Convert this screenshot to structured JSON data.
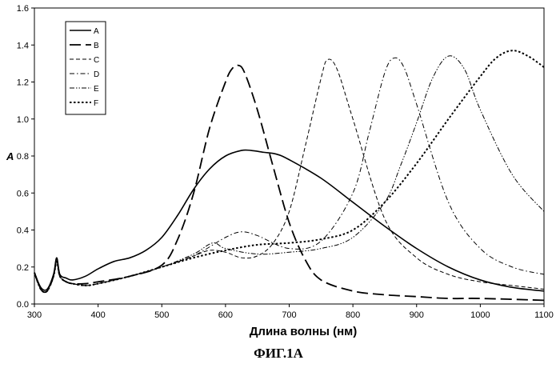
{
  "figure_caption": "ФИГ.1А",
  "chart_data": {
    "type": "line",
    "xlabel": "Длина волны (нм)",
    "ylabel": "A",
    "xlim": [
      300,
      1100
    ],
    "ylim": [
      0,
      1.6
    ],
    "x_ticks": [
      300,
      400,
      500,
      600,
      700,
      800,
      900,
      1000,
      1100
    ],
    "y_ticks": [
      "0.0",
      "0.2",
      "0.4",
      "0.6",
      "0.8",
      "1.0",
      "1.2",
      "1.4",
      "1.6"
    ],
    "legend_position": "top-left",
    "grid": false,
    "series": [
      {
        "name": "A",
        "dash": "solid",
        "x": [
          300,
          310,
          320,
          330,
          335,
          340,
          350,
          360,
          380,
          400,
          425,
          450,
          475,
          500,
          525,
          550,
          575,
          600,
          625,
          640,
          660,
          680,
          700,
          750,
          800,
          850,
          900,
          950,
          1000,
          1050,
          1100
        ],
        "y": [
          0.17,
          0.09,
          0.08,
          0.16,
          0.25,
          0.16,
          0.14,
          0.13,
          0.15,
          0.19,
          0.23,
          0.25,
          0.29,
          0.36,
          0.48,
          0.62,
          0.73,
          0.8,
          0.83,
          0.83,
          0.82,
          0.81,
          0.78,
          0.68,
          0.55,
          0.42,
          0.3,
          0.2,
          0.13,
          0.09,
          0.07
        ]
      },
      {
        "name": "B",
        "dash": "longdash",
        "x": [
          300,
          310,
          320,
          330,
          335,
          340,
          350,
          360,
          380,
          400,
          450,
          500,
          525,
          550,
          575,
          600,
          610,
          620,
          630,
          650,
          675,
          700,
          725,
          750,
          800,
          850,
          900,
          950,
          1000,
          1100
        ],
        "y": [
          0.17,
          0.08,
          0.07,
          0.15,
          0.24,
          0.15,
          0.12,
          0.11,
          0.11,
          0.12,
          0.15,
          0.21,
          0.35,
          0.6,
          0.95,
          1.2,
          1.27,
          1.29,
          1.25,
          1.05,
          0.74,
          0.44,
          0.24,
          0.13,
          0.07,
          0.05,
          0.04,
          0.03,
          0.03,
          0.02
        ]
      },
      {
        "name": "C",
        "dash": "dash",
        "x": [
          300,
          310,
          320,
          330,
          335,
          340,
          350,
          360,
          380,
          400,
          450,
          500,
          550,
          575,
          600,
          625,
          650,
          675,
          700,
          725,
          750,
          760,
          775,
          800,
          850,
          900,
          950,
          1000,
          1050,
          1100
        ],
        "y": [
          0.17,
          0.08,
          0.07,
          0.15,
          0.23,
          0.15,
          0.12,
          0.11,
          0.1,
          0.11,
          0.15,
          0.2,
          0.26,
          0.29,
          0.28,
          0.25,
          0.26,
          0.33,
          0.5,
          0.85,
          1.22,
          1.32,
          1.27,
          1.0,
          0.46,
          0.25,
          0.16,
          0.12,
          0.1,
          0.08
        ]
      },
      {
        "name": "D",
        "dash": "dashdot",
        "x": [
          300,
          310,
          320,
          330,
          335,
          340,
          350,
          360,
          380,
          400,
          450,
          500,
          550,
          600,
          625,
          650,
          700,
          750,
          800,
          825,
          850,
          865,
          880,
          900,
          950,
          1000,
          1050,
          1100
        ],
        "y": [
          0.17,
          0.08,
          0.07,
          0.15,
          0.23,
          0.15,
          0.12,
          0.11,
          0.1,
          0.11,
          0.15,
          0.2,
          0.26,
          0.36,
          0.39,
          0.37,
          0.3,
          0.34,
          0.6,
          0.92,
          1.25,
          1.33,
          1.28,
          1.08,
          0.55,
          0.3,
          0.2,
          0.16
        ]
      },
      {
        "name": "E",
        "dash": "dashdotdot",
        "x": [
          300,
          310,
          320,
          330,
          335,
          340,
          350,
          360,
          380,
          400,
          450,
          500,
          550,
          580,
          600,
          650,
          700,
          750,
          800,
          850,
          875,
          900,
          925,
          950,
          975,
          1000,
          1050,
          1100
        ],
        "y": [
          0.17,
          0.08,
          0.07,
          0.15,
          0.23,
          0.15,
          0.12,
          0.11,
          0.1,
          0.11,
          0.15,
          0.2,
          0.27,
          0.33,
          0.3,
          0.27,
          0.28,
          0.3,
          0.36,
          0.55,
          0.75,
          0.98,
          1.22,
          1.34,
          1.27,
          1.05,
          0.7,
          0.5
        ]
      },
      {
        "name": "F",
        "dash": "dot",
        "x": [
          300,
          310,
          320,
          330,
          335,
          340,
          350,
          360,
          380,
          400,
          450,
          500,
          550,
          600,
          650,
          700,
          750,
          800,
          850,
          900,
          950,
          1000,
          1025,
          1050,
          1075,
          1100
        ],
        "y": [
          0.17,
          0.08,
          0.07,
          0.15,
          0.23,
          0.15,
          0.12,
          0.11,
          0.1,
          0.11,
          0.15,
          0.2,
          0.25,
          0.29,
          0.32,
          0.33,
          0.35,
          0.4,
          0.55,
          0.76,
          1.0,
          1.23,
          1.33,
          1.37,
          1.34,
          1.28
        ]
      }
    ]
  }
}
